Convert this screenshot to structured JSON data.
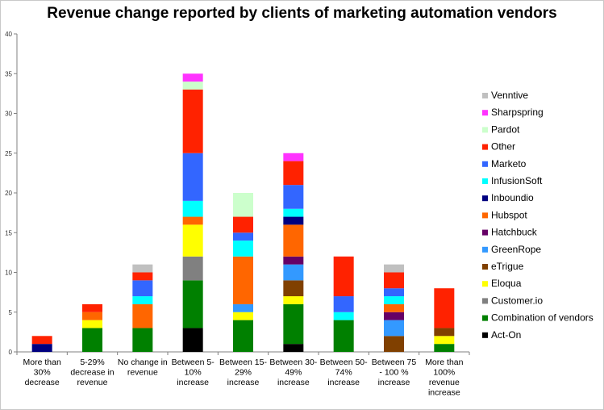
{
  "chart_data": {
    "type": "bar",
    "stacked": true,
    "title": "Revenue change reported by clients of marketing automation vendors",
    "xlabel": "",
    "ylabel": "",
    "ylim": [
      0,
      40
    ],
    "yticks": [
      0,
      5,
      10,
      15,
      20,
      25,
      30,
      35,
      40
    ],
    "grid": false,
    "legend_position": "right",
    "categories": [
      "More than 30% decrease",
      "5-29% decrease in revenue",
      "No change in revenue",
      "Between 5-10% increase",
      "Between 15-29% increase",
      "Between 30-49% increase",
      "Between 50-74% increase",
      "Between 75 - 100 % increase",
      "More than 100% revenue increase"
    ],
    "category_lines": [
      [
        "More than",
        "30%",
        "decrease"
      ],
      [
        "5-29%",
        "decrease in",
        "revenue"
      ],
      [
        "No change in",
        "revenue"
      ],
      [
        "Between 5-",
        "10%",
        "increase"
      ],
      [
        "Between 15-",
        "29%",
        "increase"
      ],
      [
        "Between 30-",
        "49%",
        "increase"
      ],
      [
        "Between 50-",
        "74%",
        "increase"
      ],
      [
        "Between 75",
        "- 100 %",
        "increase"
      ],
      [
        "More than",
        "100%",
        "revenue",
        "increase"
      ]
    ],
    "series": [
      {
        "name": "Act-On",
        "color": "#000000",
        "values": [
          0,
          0,
          0,
          3,
          0,
          1,
          0,
          0,
          0
        ]
      },
      {
        "name": "Combination of vendors",
        "color": "#008000",
        "values": [
          0,
          3,
          3,
          6,
          4,
          5,
          4,
          0,
          1
        ]
      },
      {
        "name": "Customer.io",
        "color": "#808080",
        "values": [
          0,
          0,
          0,
          3,
          0,
          0,
          0,
          0,
          0
        ]
      },
      {
        "name": "Eloqua",
        "color": "#ffff00",
        "values": [
          0,
          1,
          0,
          4,
          1,
          1,
          0,
          0,
          1
        ]
      },
      {
        "name": "eTrigue",
        "color": "#804000",
        "values": [
          0,
          0,
          0,
          0,
          0,
          2,
          0,
          2,
          1
        ]
      },
      {
        "name": "GreenRope",
        "color": "#3399ff",
        "values": [
          0,
          0,
          0,
          0,
          1,
          2,
          0,
          2,
          0
        ]
      },
      {
        "name": "Hatchbuck",
        "color": "#660066",
        "values": [
          0,
          0,
          0,
          0,
          0,
          1,
          0,
          1,
          0
        ]
      },
      {
        "name": "Hubspot",
        "color": "#ff6600",
        "values": [
          0,
          1,
          3,
          1,
          6,
          4,
          0,
          1,
          0
        ]
      },
      {
        "name": "Inboundio",
        "color": "#000080",
        "values": [
          1,
          0,
          0,
          0,
          0,
          1,
          0,
          0,
          0
        ]
      },
      {
        "name": "InfusionSoft",
        "color": "#00ffff",
        "values": [
          0,
          0,
          1,
          2,
          2,
          1,
          1,
          1,
          0
        ]
      },
      {
        "name": "Marketo",
        "color": "#3366ff",
        "values": [
          0,
          0,
          2,
          6,
          1,
          3,
          2,
          1,
          0
        ]
      },
      {
        "name": "Other",
        "color": "#ff2200",
        "values": [
          1,
          1,
          1,
          8,
          2,
          3,
          5,
          2,
          5
        ]
      },
      {
        "name": "Pardot",
        "color": "#ccffcc",
        "values": [
          0,
          0,
          0,
          1,
          3,
          0,
          0,
          0,
          0
        ]
      },
      {
        "name": "Sharpspring",
        "color": "#ff33ff",
        "values": [
          0,
          0,
          0,
          1,
          0,
          1,
          0,
          0,
          0
        ]
      },
      {
        "name": "Venntive",
        "color": "#c0c0c0",
        "values": [
          0,
          0,
          1,
          0,
          0,
          0,
          0,
          1,
          0
        ]
      }
    ]
  }
}
